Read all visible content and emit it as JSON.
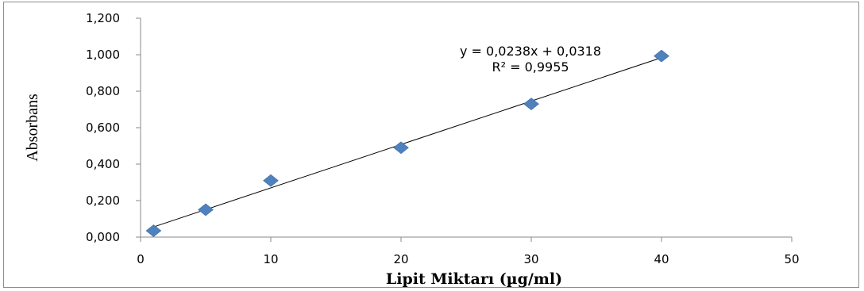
{
  "chart_data": {
    "type": "scatter",
    "xlabel": "Lipit Miktarı (µg/ml)",
    "ylabel": "Absorbans",
    "xlim": [
      0,
      50
    ],
    "ylim": [
      0,
      1.2
    ],
    "xticks": [
      "0",
      "10",
      "20",
      "30",
      "40",
      "50"
    ],
    "yticks": [
      "0,000",
      "0,200",
      "0,400",
      "0,600",
      "0,800",
      "1,000",
      "1,200"
    ],
    "grid": false,
    "legend": "none",
    "marker_color": "#4f81bd",
    "series": [
      {
        "points": [
          {
            "x": 1,
            "y": 0.035
          },
          {
            "x": 5,
            "y": 0.15
          },
          {
            "x": 10,
            "y": 0.31
          },
          {
            "x": 20,
            "y": 0.49
          },
          {
            "x": 30,
            "y": 0.73
          },
          {
            "x": 40,
            "y": 0.993
          }
        ]
      }
    ],
    "trendline": {
      "slope": 0.0238,
      "intercept": 0.0318,
      "x_range": [
        1,
        40
      ],
      "color": "#000000"
    },
    "annotations": {
      "equation": "y = 0,0238x + 0,0318",
      "r2": "R² = 0,9955"
    }
  }
}
